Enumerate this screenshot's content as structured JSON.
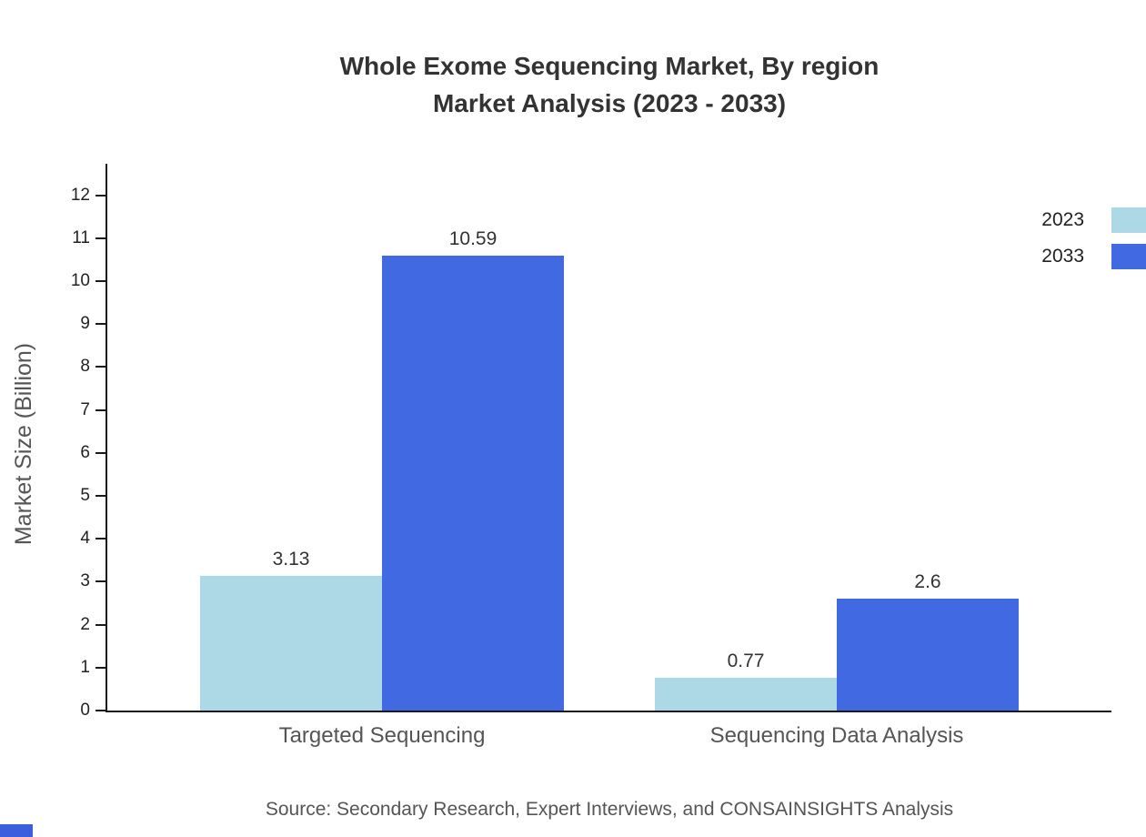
{
  "page": {
    "title": "Whole Exome Sequencing Market, By region",
    "subtitle": "Market Analysis (2023 - 2033)",
    "source": "Source: Secondary Research, Expert Interviews, and CONSAINSIGHTS Analysis",
    "brand_color": "#3b5ede"
  },
  "chart_data": {
    "type": "bar",
    "title": "Whole Exome Sequencing Market, By region",
    "subtitle": "Market Analysis (2023 - 2033)",
    "categories": [
      "Targeted Sequencing",
      "Sequencing Data Analysis"
    ],
    "series": [
      {
        "name": "2023",
        "color": "#ADD8E6",
        "values": [
          3.13,
          0.77
        ],
        "value_labels": [
          "3.13",
          "0.77"
        ]
      },
      {
        "name": "2033",
        "color": "#4169E1",
        "values": [
          10.59,
          2.6
        ],
        "value_labels": [
          "10.59",
          "2.6"
        ]
      }
    ],
    "xlabel": "",
    "ylabel": "Market Size (Billion)",
    "ylim": [
      0,
      12
    ],
    "yticks": [
      0,
      1,
      2,
      3,
      4,
      5,
      6,
      7,
      8,
      9,
      10,
      11,
      12
    ],
    "grid": false,
    "legend_position": "top-right"
  }
}
